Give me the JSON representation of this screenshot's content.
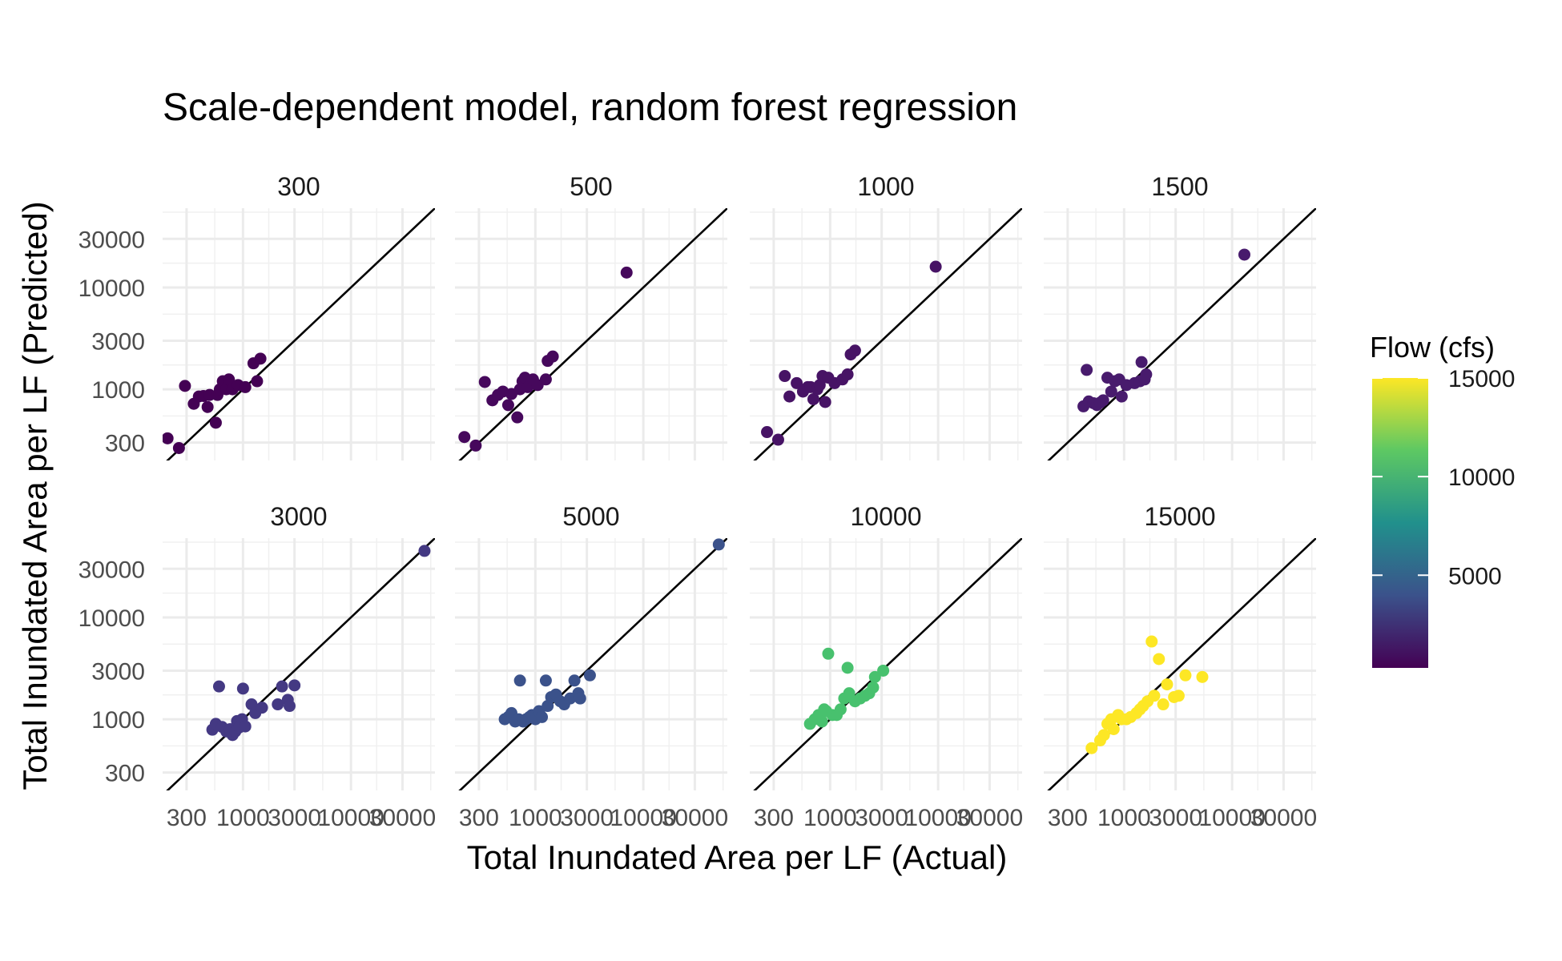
{
  "chart_data": {
    "type": "scatter",
    "title": "Scale-dependent model, random forest regression",
    "xlabel": "Total Inundated Area per LF (Actual)",
    "ylabel": "Total Inundated Area per LF (Predicted)",
    "x_scale": "log10",
    "y_scale": "log10",
    "xlim": [
      180,
      60000
    ],
    "ylim": [
      200,
      60000
    ],
    "x_ticks": [
      300,
      1000,
      3000,
      10000,
      30000
    ],
    "x_tick_labels": [
      "300",
      "1000",
      "3000",
      "10000",
      "30000"
    ],
    "y_ticks": [
      300,
      1000,
      3000,
      10000,
      30000
    ],
    "y_tick_labels": [
      "300",
      "1000",
      "3000",
      "10000",
      "30000"
    ],
    "grid": true,
    "reference_line": "y = x",
    "facet_variable": "Flow (cfs)",
    "legend": {
      "title": "Flow (cfs)",
      "type": "colorbar",
      "placement": "right",
      "min": 300,
      "max": 15000,
      "ticks": [
        5000,
        10000,
        15000
      ],
      "tick_labels": [
        "5000",
        "10000",
        "15000"
      ],
      "colormap": "viridis",
      "colors": [
        "#440154",
        "#3b528b",
        "#21908c",
        "#5dc863",
        "#fde725"
      ]
    },
    "panels": [
      {
        "label": "300",
        "flow": 300,
        "color": "#440154",
        "points": [
          [
            200,
            330
          ],
          [
            255,
            265
          ],
          [
            290,
            1080
          ],
          [
            350,
            720
          ],
          [
            390,
            850
          ],
          [
            430,
            860
          ],
          [
            470,
            670
          ],
          [
            490,
            880
          ],
          [
            560,
            470
          ],
          [
            580,
            880
          ],
          [
            610,
            1000
          ],
          [
            650,
            1200
          ],
          [
            700,
            1000
          ],
          [
            740,
            1250
          ],
          [
            800,
            1000
          ],
          [
            900,
            1100
          ],
          [
            1050,
            1050
          ],
          [
            1250,
            1800
          ],
          [
            1350,
            1200
          ],
          [
            1450,
            2000
          ]
        ]
      },
      {
        "label": "500",
        "flow": 500,
        "color": "#46085c",
        "points": [
          [
            220,
            340
          ],
          [
            280,
            280
          ],
          [
            340,
            1180
          ],
          [
            400,
            780
          ],
          [
            450,
            880
          ],
          [
            500,
            950
          ],
          [
            560,
            700
          ],
          [
            600,
            900
          ],
          [
            680,
            530
          ],
          [
            720,
            1000
          ],
          [
            760,
            1200
          ],
          [
            800,
            1300
          ],
          [
            850,
            1050
          ],
          [
            950,
            1250
          ],
          [
            1050,
            1100
          ],
          [
            1250,
            1250
          ],
          [
            1300,
            1900
          ],
          [
            1450,
            2100
          ],
          [
            7000,
            14000
          ]
        ]
      },
      {
        "label": "1000",
        "flow": 1000,
        "color": "#471365",
        "points": [
          [
            260,
            380
          ],
          [
            330,
            320
          ],
          [
            380,
            1350
          ],
          [
            420,
            850
          ],
          [
            490,
            1150
          ],
          [
            560,
            950
          ],
          [
            620,
            1050
          ],
          [
            660,
            1050
          ],
          [
            700,
            800
          ],
          [
            760,
            1000
          ],
          [
            800,
            1100
          ],
          [
            850,
            1350
          ],
          [
            900,
            750
          ],
          [
            960,
            1300
          ],
          [
            1100,
            1150
          ],
          [
            1300,
            1250
          ],
          [
            1450,
            1400
          ],
          [
            1550,
            2200
          ],
          [
            1700,
            2400
          ],
          [
            9500,
            16000
          ]
        ]
      },
      {
        "label": "1500",
        "flow": 1500,
        "color": "#481b6d",
        "points": [
          [
            420,
            680
          ],
          [
            450,
            1550
          ],
          [
            470,
            760
          ],
          [
            520,
            730
          ],
          [
            560,
            700
          ],
          [
            600,
            740
          ],
          [
            640,
            780
          ],
          [
            700,
            1300
          ],
          [
            760,
            950
          ],
          [
            820,
            1200
          ],
          [
            900,
            1250
          ],
          [
            950,
            850
          ],
          [
            1050,
            1100
          ],
          [
            1250,
            1150
          ],
          [
            1400,
            1200
          ],
          [
            1450,
            1850
          ],
          [
            1550,
            1250
          ],
          [
            1600,
            1400
          ],
          [
            13000,
            21000
          ]
        ]
      },
      {
        "label": "3000",
        "flow": 3000,
        "color": "#443983",
        "points": [
          [
            520,
            790
          ],
          [
            560,
            900
          ],
          [
            600,
            2100
          ],
          [
            640,
            840
          ],
          [
            700,
            760
          ],
          [
            760,
            800
          ],
          [
            800,
            700
          ],
          [
            850,
            760
          ],
          [
            880,
            960
          ],
          [
            920,
            830
          ],
          [
            980,
            1000
          ],
          [
            1000,
            2000
          ],
          [
            1050,
            850
          ],
          [
            1200,
            1400
          ],
          [
            1300,
            1150
          ],
          [
            1500,
            1300
          ],
          [
            2100,
            1400
          ],
          [
            2300,
            2100
          ],
          [
            2600,
            1550
          ],
          [
            2700,
            1350
          ],
          [
            3000,
            2150
          ],
          [
            48000,
            45000
          ]
        ]
      },
      {
        "label": "5000",
        "flow": 5000,
        "color": "#3b528b",
        "points": [
          [
            520,
            1000
          ],
          [
            560,
            1050
          ],
          [
            600,
            1150
          ],
          [
            650,
            950
          ],
          [
            700,
            1000
          ],
          [
            720,
            2400
          ],
          [
            770,
            950
          ],
          [
            820,
            1000
          ],
          [
            880,
            1050
          ],
          [
            930,
            1100
          ],
          [
            1000,
            1000
          ],
          [
            1080,
            1200
          ],
          [
            1150,
            1050
          ],
          [
            1250,
            2400
          ],
          [
            1300,
            1350
          ],
          [
            1400,
            1650
          ],
          [
            1550,
            1750
          ],
          [
            1700,
            1500
          ],
          [
            1850,
            1400
          ],
          [
            2100,
            1600
          ],
          [
            2300,
            2400
          ],
          [
            2500,
            1800
          ],
          [
            2600,
            1600
          ],
          [
            3200,
            2700
          ],
          [
            50000,
            52000
          ]
        ]
      },
      {
        "label": "10000",
        "flow": 10000,
        "color": "#48c16e",
        "points": [
          [
            650,
            900
          ],
          [
            720,
            1000
          ],
          [
            780,
            1100
          ],
          [
            840,
            950
          ],
          [
            880,
            1250
          ],
          [
            920,
            1200
          ],
          [
            960,
            4400
          ],
          [
            1050,
            1100
          ],
          [
            1150,
            1100
          ],
          [
            1250,
            1250
          ],
          [
            1350,
            1600
          ],
          [
            1450,
            3200
          ],
          [
            1500,
            1800
          ],
          [
            1700,
            1500
          ],
          [
            1900,
            1600
          ],
          [
            2100,
            1700
          ],
          [
            2300,
            1800
          ],
          [
            2500,
            2050
          ],
          [
            2600,
            2600
          ],
          [
            3100,
            3000
          ]
        ]
      },
      {
        "label": "15000",
        "flow": 15000,
        "color": "#fde725",
        "points": [
          [
            500,
            520
          ],
          [
            600,
            620
          ],
          [
            650,
            700
          ],
          [
            700,
            900
          ],
          [
            760,
            1000
          ],
          [
            800,
            800
          ],
          [
            880,
            1100
          ],
          [
            950,
            1000
          ],
          [
            1050,
            1000
          ],
          [
            1150,
            1050
          ],
          [
            1300,
            1150
          ],
          [
            1400,
            1250
          ],
          [
            1500,
            1350
          ],
          [
            1650,
            1500
          ],
          [
            1800,
            5800
          ],
          [
            1900,
            1700
          ],
          [
            2100,
            3900
          ],
          [
            2300,
            1400
          ],
          [
            2500,
            2200
          ],
          [
            2900,
            1650
          ],
          [
            3200,
            1700
          ],
          [
            3700,
            2700
          ],
          [
            5300,
            2600
          ]
        ]
      }
    ]
  }
}
